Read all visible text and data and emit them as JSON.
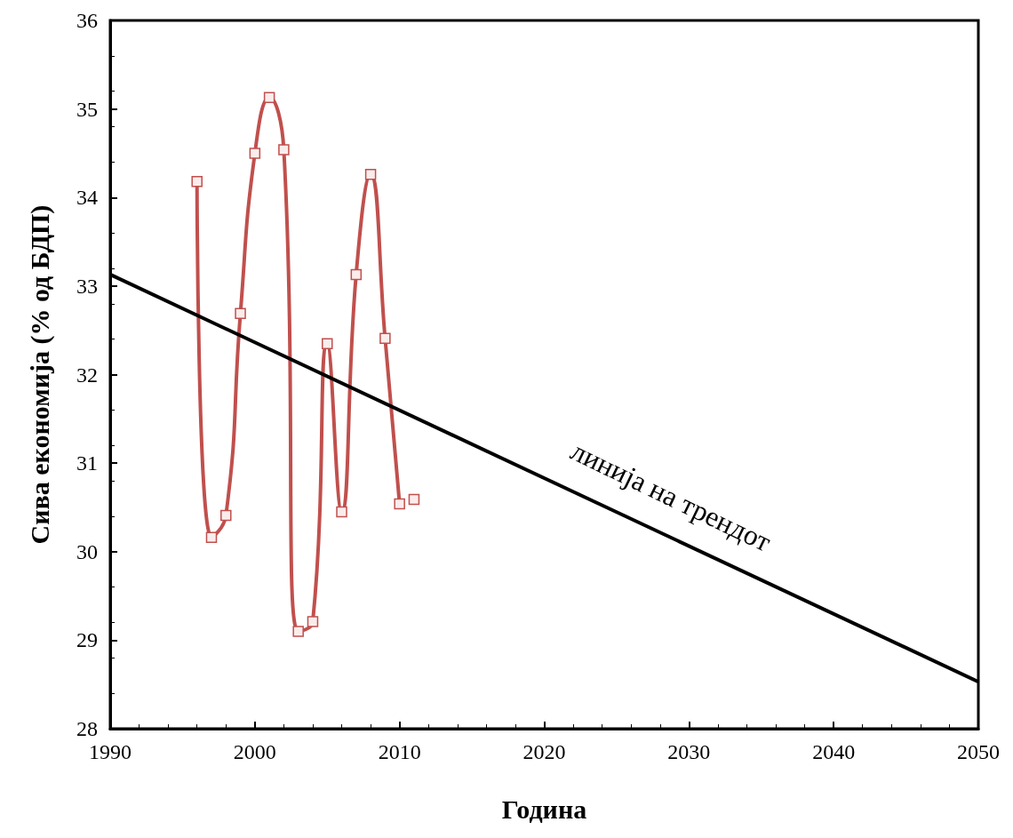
{
  "chart_data": {
    "type": "line",
    "xlabel": "Година",
    "ylabel": "Сива економија (% од БДП)",
    "xlim": [
      1990,
      2050
    ],
    "xticks": [
      1990,
      2000,
      2010,
      2020,
      2030,
      2040,
      2050
    ],
    "ylim": [
      28,
      36
    ],
    "yticks": [
      28,
      29,
      30,
      31,
      32,
      33,
      34,
      35,
      36
    ],
    "grid": false,
    "marker": "square",
    "series": [
      {
        "color": "#c0504d",
        "x": [
          1996,
          1997,
          1998,
          1999,
          2000,
          2001,
          2002,
          2003,
          2004,
          2005,
          2006,
          2007,
          2008,
          2009,
          2010
        ],
        "values": [
          34.18,
          30.16,
          30.41,
          32.69,
          34.5,
          35.13,
          34.54,
          29.1,
          29.21,
          32.35,
          30.45,
          33.13,
          34.26,
          32.41,
          30.54
        ]
      },
      {
        "type": "scatter",
        "color": "#c0504d",
        "x": [
          2011
        ],
        "values": [
          30.59
        ]
      },
      {
        "color": "#000000",
        "marker": "none",
        "x": [
          1990,
          2050
        ],
        "values": [
          33.13,
          28.53
        ]
      }
    ],
    "annotations": [
      "линија на трендот"
    ]
  }
}
